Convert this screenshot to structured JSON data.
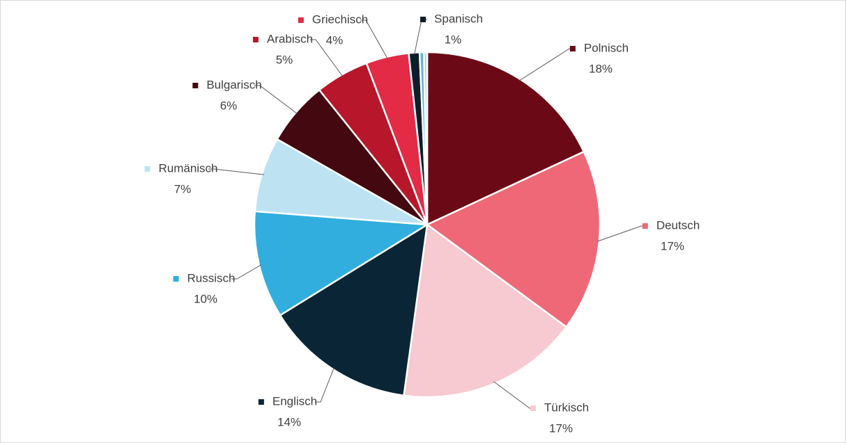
{
  "chart_data": {
    "type": "pie",
    "categories": [
      "Polnisch",
      "Deutsch",
      "Türkisch",
      "Englisch",
      "Russisch",
      "Rumänisch",
      "Bulgarisch",
      "Arabisch",
      "Griechisch",
      "Spanisch",
      null,
      null
    ],
    "values": [
      18,
      17,
      17,
      14,
      10,
      7,
      6,
      5,
      4,
      1,
      0.4,
      0.3
    ],
    "value_labels": [
      "18%",
      "17%",
      "17%",
      "14%",
      "10%",
      "7%",
      "6%",
      "5%",
      "4%",
      "1%",
      null,
      null
    ],
    "colors": [
      "#6b0a16",
      "#ef6877",
      "#f7c9d0",
      "#0a2535",
      "#31aede",
      "#bde3f3",
      "#430810",
      "#b8162a",
      "#e32b45",
      "#0d1e2a",
      "#5bb5dd",
      "#a8d8ee"
    ]
  }
}
